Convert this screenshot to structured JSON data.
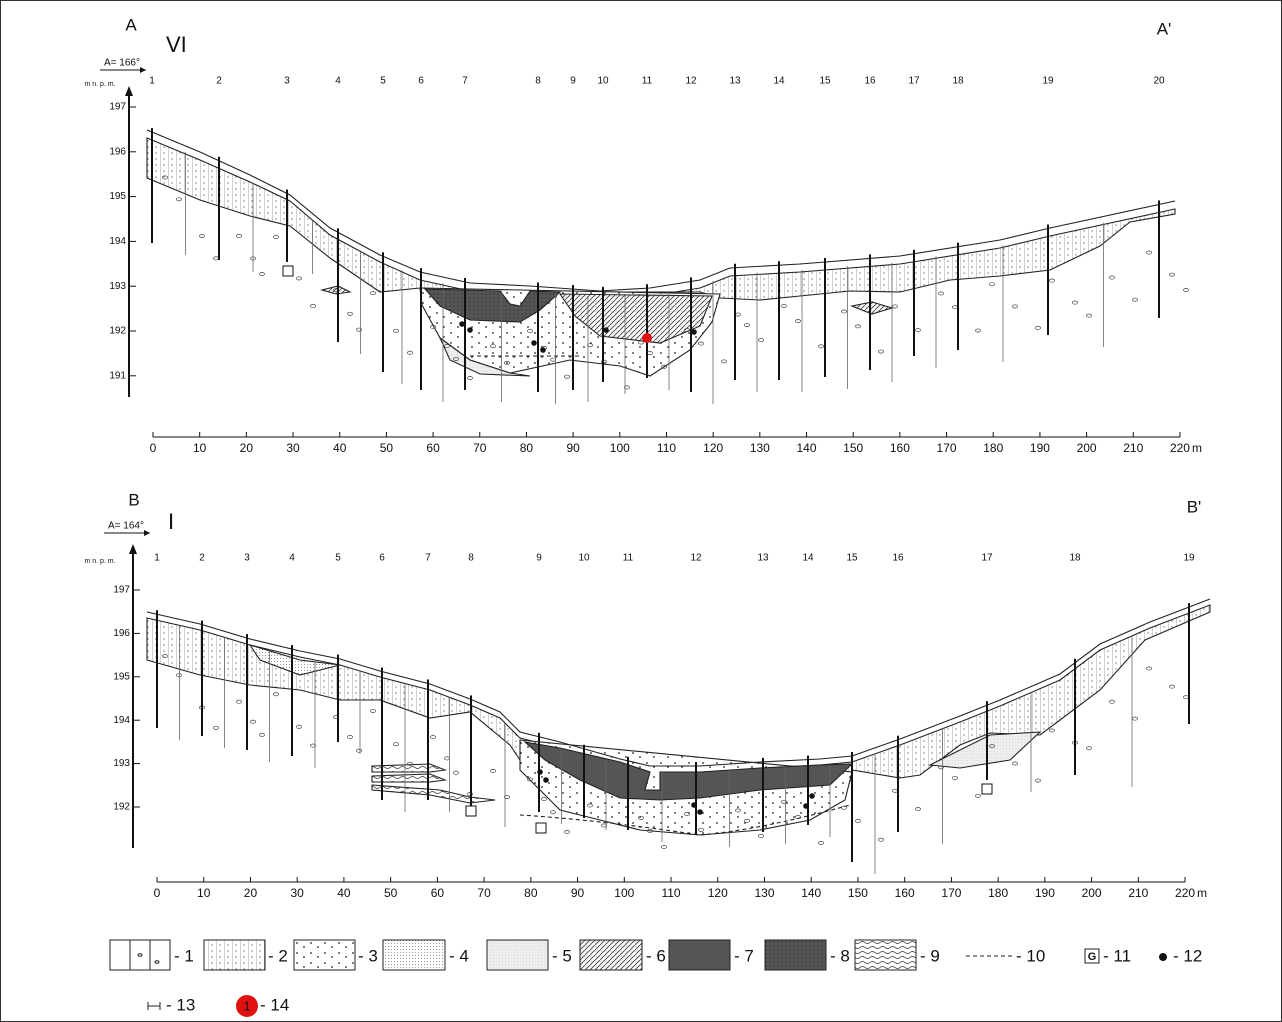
{
  "sections": [
    {
      "label_left": "A",
      "label_right": "A'",
      "number": "VI",
      "azimuth": "A= 166°",
      "y_axis_label": "m n. p. m.",
      "boreholes": [
        "1",
        "2",
        "3",
        "4",
        "5",
        "6",
        "7",
        "8",
        "9",
        "10",
        "11",
        "12",
        "13",
        "14",
        "15",
        "16",
        "17",
        "18",
        "19",
        "20"
      ],
      "y_ticks": [
        197,
        196,
        195,
        194,
        193,
        192,
        191
      ],
      "x_ticks": [
        0,
        10,
        20,
        30,
        40,
        50,
        60,
        70,
        80,
        90,
        100,
        110,
        120,
        130,
        140,
        150,
        160,
        170,
        180,
        190,
        200,
        210,
        220
      ],
      "x_unit": "m"
    },
    {
      "label_left": "B",
      "label_right": "B'",
      "number": "I",
      "azimuth": "A= 164°",
      "y_axis_label": "m n. p. m.",
      "boreholes": [
        "1",
        "2",
        "3",
        "4",
        "5",
        "6",
        "7",
        "8",
        "9",
        "10",
        "11",
        "12",
        "13",
        "14",
        "15",
        "16",
        "17",
        "18",
        "19"
      ],
      "y_ticks": [
        197,
        196,
        195,
        194,
        193,
        192
      ],
      "x_ticks": [
        0,
        10,
        20,
        30,
        40,
        50,
        60,
        70,
        80,
        90,
        100,
        110,
        120,
        130,
        140,
        150,
        160,
        170,
        180,
        190,
        200,
        210,
        220
      ],
      "x_unit": "m"
    }
  ],
  "legend": [
    {
      "label": "- 1"
    },
    {
      "label": "- 2"
    },
    {
      "label": "- 3"
    },
    {
      "label": "- 4"
    },
    {
      "label": "- 5"
    },
    {
      "label": "- 6"
    },
    {
      "label": "- 7"
    },
    {
      "label": "- 8"
    },
    {
      "label": "- 9"
    },
    {
      "label": "- 10"
    },
    {
      "label": "- 11",
      "symbol": "G"
    },
    {
      "label": "- 12"
    },
    {
      "label": "- 13"
    },
    {
      "label": "- 14",
      "symbol": "1"
    }
  ]
}
